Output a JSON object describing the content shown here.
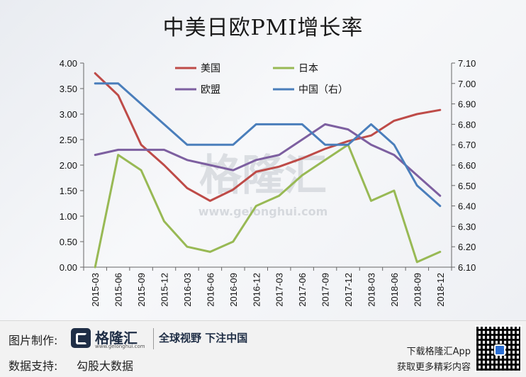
{
  "chart_data": {
    "type": "line",
    "title": "中美日欧PMI增长率",
    "categories": [
      "2015-03",
      "2015-06",
      "2015-09",
      "2015-12",
      "2016-03",
      "2016-06",
      "2016-09",
      "2016-12",
      "2017-03",
      "2017-06",
      "2017-09",
      "2017-12",
      "2018-03",
      "2018-06",
      "2018-09",
      "2018-12"
    ],
    "y_left": {
      "ylim": [
        0,
        4
      ],
      "ticks": [
        "0.00",
        "0.50",
        "1.00",
        "1.50",
        "2.00",
        "2.50",
        "3.00",
        "3.50",
        "4.00"
      ]
    },
    "y_right": {
      "ylim": [
        6.1,
        7.1
      ],
      "ticks": [
        "6.10",
        "6.20",
        "6.30",
        "6.40",
        "6.50",
        "6.60",
        "6.70",
        "6.80",
        "6.90",
        "7.00",
        "7.10"
      ]
    },
    "legend_position": "top",
    "series": [
      {
        "name": "美国",
        "axis": "left",
        "color": "#be4b48",
        "values": [
          3.8,
          3.37,
          2.4,
          2.0,
          1.55,
          1.3,
          1.52,
          1.87,
          1.97,
          2.13,
          2.32,
          2.47,
          2.58,
          2.87,
          3.0,
          3.08
        ]
      },
      {
        "name": "日本",
        "axis": "left",
        "color": "#98b954",
        "values": [
          0.0,
          2.2,
          1.9,
          0.9,
          0.4,
          0.3,
          0.5,
          1.2,
          1.4,
          1.8,
          2.1,
          2.4,
          1.3,
          1.5,
          0.1,
          0.3
        ]
      },
      {
        "name": "欧盟",
        "axis": "left",
        "color": "#7d5fa0",
        "values": [
          2.2,
          2.3,
          2.3,
          2.3,
          2.1,
          2.0,
          1.9,
          2.1,
          2.2,
          2.5,
          2.8,
          2.7,
          2.4,
          2.2,
          1.8,
          1.4
        ]
      },
      {
        "name": "中国（右）",
        "axis": "right",
        "color": "#4a7ebb",
        "values": [
          7.0,
          7.0,
          6.9,
          6.8,
          6.7,
          6.7,
          6.7,
          6.8,
          6.8,
          6.8,
          6.7,
          6.7,
          6.8,
          6.7,
          6.5,
          6.4
        ]
      }
    ]
  },
  "watermark": {
    "brand": "格隆汇",
    "domain": "www.gelonghui.com"
  },
  "footer": {
    "made_by_label": "图片制作:",
    "brand_name": "格隆汇",
    "brand_domain": "www.gelonghui.com",
    "slogan": "全球视野 下注中国",
    "data_support_label": "数据支持:",
    "data_support_value": "勾股大数据",
    "app_download": "下载格隆汇App",
    "app_tagline": "获取更多精彩内容",
    "qr_icon": "qr-code-icon"
  }
}
